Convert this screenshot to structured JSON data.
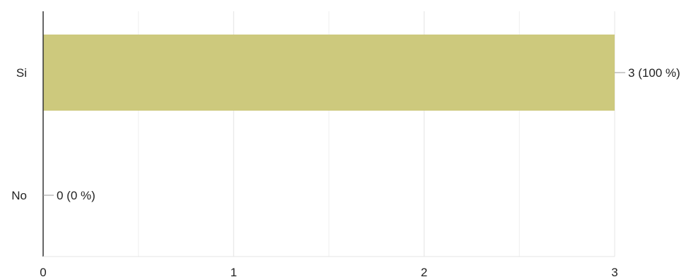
{
  "chart_data": {
    "type": "bar",
    "orientation": "horizontal",
    "categories": [
      "Si",
      "No"
    ],
    "values": [
      3,
      0
    ],
    "value_labels": [
      "3 (100 %)",
      "0 (0 %)"
    ],
    "xlim": [
      0,
      3
    ],
    "x_ticks": [
      0,
      1,
      2,
      3
    ],
    "x_tick_labels": [
      "0",
      "1",
      "2",
      "3"
    ],
    "minor_gridlines": true,
    "grid": true,
    "bar_color": "#cdc97d"
  }
}
